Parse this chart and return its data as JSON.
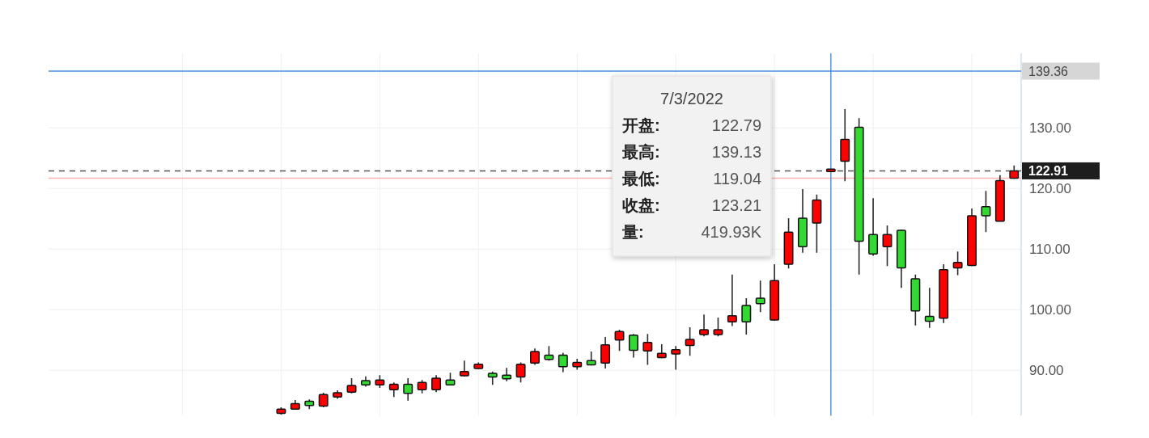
{
  "chart_data": {
    "type": "candlestick",
    "categories": [
      null,
      null,
      null,
      null,
      null,
      null,
      null,
      null,
      null,
      null,
      null,
      null,
      null,
      null,
      null,
      null,
      null,
      null,
      null,
      null,
      null,
      null,
      null,
      null,
      null,
      null,
      null,
      null,
      null,
      null,
      null,
      null,
      null,
      null,
      null,
      null,
      null,
      null,
      null,
      null,
      null,
      null,
      null,
      null,
      null,
      null,
      null,
      null,
      null,
      null,
      null,
      null,
      null,
      null,
      null,
      null,
      null,
      null,
      null,
      null,
      null,
      null,
      null,
      null,
      null,
      null,
      null,
      null,
      null
    ],
    "ohlc": [
      null,
      null,
      null,
      null,
      null,
      null,
      null,
      null,
      null,
      null,
      null,
      null,
      null,
      null,
      null,
      null,
      [
        82.9,
        83.9,
        82.7,
        83.6
      ],
      [
        83.6,
        85.1,
        83.5,
        84.5
      ],
      [
        84.9,
        85.2,
        83.6,
        84.2
      ],
      [
        84.1,
        86.3,
        83.9,
        86.0
      ],
      [
        85.6,
        86.7,
        85.3,
        86.3
      ],
      [
        86.4,
        88.7,
        86.2,
        87.5
      ],
      [
        88.3,
        89.0,
        87.3,
        87.6
      ],
      [
        87.6,
        89.2,
        87.1,
        88.4
      ],
      [
        86.8,
        88.0,
        85.6,
        87.7
      ],
      [
        87.7,
        88.7,
        85.0,
        86.2
      ],
      [
        86.8,
        88.4,
        86.2,
        88.0
      ],
      [
        86.8,
        89.2,
        86.4,
        88.7
      ],
      [
        88.4,
        89.6,
        87.5,
        87.6
      ],
      [
        89.1,
        91.6,
        89.0,
        89.8
      ],
      [
        90.3,
        91.3,
        90.2,
        91.0
      ],
      [
        89.5,
        89.8,
        87.6,
        88.9
      ],
      [
        89.2,
        90.4,
        88.2,
        88.6
      ],
      [
        88.9,
        91.3,
        88.0,
        91.0
      ],
      [
        91.2,
        93.6,
        90.9,
        93.1
      ],
      [
        92.5,
        94.0,
        91.6,
        91.8
      ],
      [
        92.5,
        92.9,
        89.7,
        90.6
      ],
      [
        90.6,
        91.9,
        90.1,
        91.3
      ],
      [
        91.6,
        93.1,
        90.8,
        90.9
      ],
      [
        91.2,
        95.5,
        90.3,
        94.2
      ],
      [
        95.0,
        96.7,
        93.2,
        96.4
      ],
      [
        95.8,
        96.0,
        92.1,
        93.3
      ],
      [
        93.2,
        96.0,
        90.9,
        94.6
      ],
      [
        92.1,
        94.3,
        92.0,
        92.8
      ],
      [
        92.7,
        94.0,
        90.1,
        93.4
      ],
      [
        94.1,
        97.1,
        92.4,
        95.1
      ],
      [
        95.9,
        99.2,
        95.6,
        96.7
      ],
      [
        95.9,
        98.7,
        95.6,
        96.7
      ],
      [
        98.0,
        105.8,
        97.3,
        99.0
      ],
      [
        100.7,
        101.9,
        95.9,
        98.0
      ],
      [
        101.9,
        104.8,
        99.6,
        101.0
      ],
      [
        98.3,
        107.5,
        98.2,
        104.8
      ],
      [
        107.5,
        115.1,
        106.8,
        112.8
      ],
      [
        115.1,
        119.9,
        109.4,
        110.4
      ],
      [
        114.3,
        119.0,
        109.4,
        118.1
      ],
      [
        122.79,
        123.21,
        122.79,
        123.21
      ],
      [
        124.5,
        133.1,
        121.2,
        128.1
      ],
      [
        130.1,
        131.6,
        105.8,
        111.3
      ],
      [
        112.4,
        118.4,
        108.9,
        109.2
      ],
      [
        110.4,
        113.9,
        107.2,
        112.4
      ],
      [
        113.1,
        113.2,
        103.6,
        106.9
      ],
      [
        105.1,
        105.8,
        97.4,
        99.8
      ],
      [
        98.9,
        103.6,
        97.0,
        98.1
      ],
      [
        98.6,
        107.5,
        97.8,
        106.6
      ],
      [
        106.9,
        109.6,
        105.7,
        107.8
      ],
      [
        107.3,
        116.7,
        107.2,
        115.5
      ],
      [
        117.0,
        119.6,
        112.8,
        115.5
      ],
      [
        114.6,
        122.2,
        114.6,
        121.3
      ],
      [
        121.7,
        123.8,
        121.6,
        122.91
      ]
    ],
    "colors": [
      null,
      null,
      null,
      null,
      null,
      null,
      null,
      null,
      null,
      null,
      null,
      null,
      null,
      null,
      null,
      null,
      "#ff0000",
      "#ff0000",
      "#33d933",
      "#ff0000",
      "#ff0000",
      "#ff0000",
      "#33d933",
      "#ff0000",
      "#ff0000",
      "#33d933",
      "#ff0000",
      "#ff0000",
      "#33d933",
      "#ff0000",
      "#ff0000",
      "#33d933",
      "#33d933",
      "#ff0000",
      "#ff0000",
      "#33d933",
      "#33d933",
      "#ff0000",
      "#33d933",
      "#ff0000",
      "#ff0000",
      "#33d933",
      "#ff0000",
      "#ff0000",
      "#ff0000",
      "#ff0000",
      "#ff0000",
      "#ff0000",
      "#ff0000",
      "#33d933",
      "#33d933",
      "#ff0000",
      "#ff0000",
      "#33d933",
      "#ff0000",
      "#ff0000",
      "#ff0000",
      "#33d933",
      "#33d933",
      "#ff0000",
      "#33d933",
      "#33d933",
      "#33d933",
      "#ff0000",
      "#ff0000",
      "#ff0000",
      "#33d933",
      "#ff0000",
      "#ff0000"
    ],
    "ylim": [
      82.5,
      142.3
    ],
    "yticks": [
      {
        "value": 90,
        "label": "90.00"
      },
      {
        "value": 100,
        "label": "100.00"
      },
      {
        "value": 110,
        "label": "110.00"
      },
      {
        "value": 120,
        "label": "120.00"
      },
      {
        "value": 130,
        "label": "130.00"
      }
    ],
    "ref_lines": [
      {
        "axis": "y",
        "value": 139.36,
        "label": "139.36",
        "color": "#4a8fd8",
        "line_style": "solid"
      },
      {
        "axis": "y",
        "value": 122.91,
        "label": "122.91",
        "color": "#555555",
        "line_style": "dashed"
      },
      {
        "axis": "y",
        "value": 121.7,
        "color": "#ffb3b3",
        "line_style": "solid"
      }
    ],
    "annotations": [
      "7/3/2022",
      "开盘:",
      "122.79",
      "最高:",
      "139.13",
      "最低:",
      "119.04",
      "收盘:",
      "123.21",
      "量:",
      "419.93K"
    ],
    "grid": true,
    "tick_labels": "y"
  }
}
